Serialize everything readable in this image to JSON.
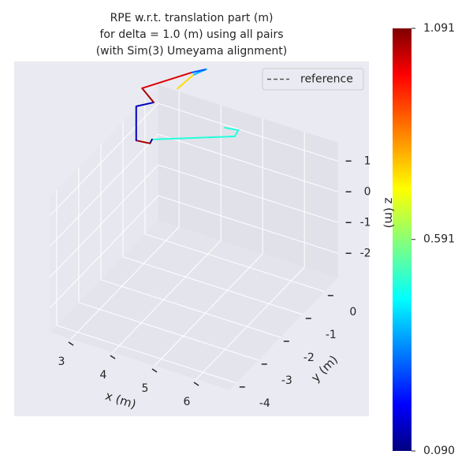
{
  "chart_data": {
    "type": "line3d",
    "title": [
      "RPE w.r.t. translation part (m)",
      "for delta = 1.0 (m) using all pairs",
      "(with Sim(3) Umeyama alignment)"
    ],
    "x_label": "x (m)",
    "y_label": "y (m)",
    "z_label": "z (m)",
    "xlim": [
      2.5,
      6.8
    ],
    "ylim": [
      -4.3,
      0.6
    ],
    "zlim": [
      -2.8,
      1.6
    ],
    "xticks": [
      3,
      4,
      5,
      6
    ],
    "yticks": [
      -4,
      -3,
      -2,
      -1,
      0
    ],
    "zticks": [
      -2,
      -1,
      0,
      1
    ],
    "grid": true,
    "x": [
      3.28,
      3.65,
      3.97,
      3.62,
      2.43,
      2.71,
      2.29,
      2.29,
      2.62,
      2.67,
      4.65,
      4.73,
      4.41
    ],
    "y": [
      0,
      0,
      0,
      0,
      0,
      0,
      0,
      0,
      0,
      0,
      0,
      0,
      0
    ],
    "z": [
      2.27,
      2.87,
      3.2,
      2.94,
      1.91,
      1.57,
      1.26,
      0.15,
      0.2,
      0.35,
      1.31,
      1.55,
      1.49
    ],
    "errors": [
      0.75,
      0.75,
      0.4,
      0.3,
      1.0,
      1.05,
      0.15,
      0.15,
      1.05,
      0.1,
      0.5,
      0.5,
      0.5
    ],
    "colormap": "jet",
    "clim": [
      0.09,
      1.091
    ],
    "cticks": [
      {
        "value": 0.09,
        "label": "0.090"
      },
      {
        "value": 0.591,
        "label": "0.591"
      },
      {
        "value": 1.091,
        "label": "1.091"
      }
    ],
    "legend": [
      {
        "label": "reference",
        "color": "#555555",
        "linestyle": "dashed"
      }
    ],
    "legend_loc": "upper right"
  }
}
